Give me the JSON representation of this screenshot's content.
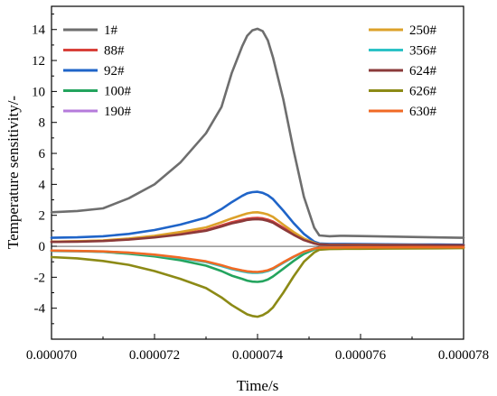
{
  "chart_data": {
    "type": "line",
    "xlabel": "Time/s",
    "ylabel": "Temperature sensitivity/-",
    "xlim": [
      7e-05,
      7.8e-05
    ],
    "ylim": [
      -6,
      15.5
    ],
    "xticks": [
      7e-05,
      7.2e-05,
      7.4e-05,
      7.6e-05,
      7.8e-05
    ],
    "xtick_labels": [
      "0.000070",
      "0.000072",
      "0.000074",
      "0.000076",
      "0.000078"
    ],
    "yticks": [
      -4,
      -2,
      0,
      2,
      4,
      6,
      8,
      10,
      12,
      14
    ],
    "ytick_labels": [
      "-4",
      "-2",
      "0",
      "2",
      "4",
      "6",
      "8",
      "10",
      "12",
      "14"
    ],
    "grid": false,
    "legend_placement": "top",
    "x": [
      7e-05,
      7.05e-05,
      7.1e-05,
      7.15e-05,
      7.2e-05,
      7.25e-05,
      7.3e-05,
      7.33e-05,
      7.35e-05,
      7.37e-05,
      7.38e-05,
      7.39e-05,
      7.4e-05,
      7.41e-05,
      7.42e-05,
      7.43e-05,
      7.45e-05,
      7.47e-05,
      7.49e-05,
      7.51e-05,
      7.52e-05,
      7.54e-05,
      7.56e-05,
      7.6e-05,
      7.65e-05,
      7.7e-05,
      7.75e-05,
      7.8e-05
    ],
    "series": [
      {
        "name": "1#",
        "color": "#6e6e6e",
        "values": [
          2.2,
          2.28,
          2.45,
          3.1,
          4.0,
          5.4,
          7.3,
          9.0,
          11.2,
          12.9,
          13.6,
          13.95,
          14.05,
          13.9,
          13.3,
          12.2,
          9.5,
          6.2,
          3.2,
          1.2,
          0.7,
          0.65,
          0.68,
          0.66,
          0.63,
          0.6,
          0.57,
          0.55
        ]
      },
      {
        "name": "88#",
        "color": "#d8413a",
        "values": [
          0.3,
          0.32,
          0.36,
          0.45,
          0.6,
          0.8,
          1.05,
          1.35,
          1.55,
          1.7,
          1.78,
          1.82,
          1.83,
          1.8,
          1.72,
          1.6,
          1.2,
          0.8,
          0.45,
          0.2,
          0.12,
          0.1,
          0.1,
          0.1,
          0.09,
          0.08,
          0.07,
          0.07
        ]
      },
      {
        "name": "92#",
        "color": "#1f64c8",
        "values": [
          0.55,
          0.58,
          0.65,
          0.8,
          1.05,
          1.4,
          1.85,
          2.4,
          2.85,
          3.25,
          3.42,
          3.5,
          3.52,
          3.45,
          3.3,
          3.05,
          2.3,
          1.5,
          0.8,
          0.3,
          0.18,
          0.15,
          0.15,
          0.14,
          0.13,
          0.12,
          0.11,
          0.1
        ]
      },
      {
        "name": "100#",
        "color": "#23a45e",
        "values": [
          -0.3,
          -0.32,
          -0.36,
          -0.48,
          -0.65,
          -0.9,
          -1.25,
          -1.6,
          -1.9,
          -2.1,
          -2.22,
          -2.28,
          -2.3,
          -2.26,
          -2.15,
          -1.95,
          -1.45,
          -0.95,
          -0.5,
          -0.2,
          -0.12,
          -0.1,
          -0.1,
          -0.1,
          -0.09,
          -0.08,
          -0.07,
          -0.07
        ]
      },
      {
        "name": "190#",
        "color": "#b57bdb",
        "values": [
          -0.3,
          -0.31,
          -0.34,
          -0.42,
          -0.55,
          -0.75,
          -1.0,
          -1.25,
          -1.45,
          -1.6,
          -1.65,
          -1.68,
          -1.7,
          -1.66,
          -1.58,
          -1.45,
          -1.05,
          -0.68,
          -0.36,
          -0.15,
          -0.1,
          -0.08,
          -0.08,
          -0.08,
          -0.07,
          -0.07,
          -0.06,
          -0.06
        ]
      },
      {
        "name": "250#",
        "color": "#dca12a",
        "values": [
          0.3,
          0.33,
          0.38,
          0.5,
          0.68,
          0.92,
          1.22,
          1.55,
          1.8,
          2.02,
          2.12,
          2.18,
          2.2,
          2.14,
          2.05,
          1.9,
          1.4,
          0.92,
          0.5,
          0.22,
          0.13,
          0.1,
          0.1,
          0.1,
          0.09,
          0.08,
          0.07,
          0.07
        ]
      },
      {
        "name": "356#",
        "color": "#2cc2c6",
        "values": [
          -0.3,
          -0.31,
          -0.34,
          -0.43,
          -0.57,
          -0.77,
          -1.02,
          -1.28,
          -1.48,
          -1.62,
          -1.68,
          -1.71,
          -1.72,
          -1.68,
          -1.6,
          -1.47,
          -1.07,
          -0.7,
          -0.37,
          -0.16,
          -0.1,
          -0.08,
          -0.08,
          -0.08,
          -0.07,
          -0.07,
          -0.06,
          -0.06
        ]
      },
      {
        "name": "624#",
        "color": "#8b3a3a",
        "values": [
          0.28,
          0.3,
          0.34,
          0.43,
          0.57,
          0.76,
          1.0,
          1.28,
          1.48,
          1.62,
          1.7,
          1.74,
          1.75,
          1.72,
          1.64,
          1.52,
          1.12,
          0.74,
          0.4,
          0.18,
          0.11,
          0.09,
          0.09,
          0.09,
          0.08,
          0.08,
          0.07,
          0.07
        ]
      },
      {
        "name": "626#",
        "color": "#8c8a16",
        "values": [
          -0.7,
          -0.78,
          -0.95,
          -1.2,
          -1.6,
          -2.1,
          -2.7,
          -3.3,
          -3.8,
          -4.2,
          -4.4,
          -4.5,
          -4.55,
          -4.45,
          -4.25,
          -3.95,
          -3.0,
          -1.95,
          -1.0,
          -0.4,
          -0.22,
          -0.18,
          -0.17,
          -0.16,
          -0.15,
          -0.14,
          -0.13,
          -0.12
        ]
      },
      {
        "name": "630#",
        "color": "#f06a24",
        "values": [
          -0.28,
          -0.3,
          -0.33,
          -0.41,
          -0.54,
          -0.73,
          -0.97,
          -1.22,
          -1.42,
          -1.56,
          -1.62,
          -1.65,
          -1.66,
          -1.62,
          -1.55,
          -1.42,
          -1.03,
          -0.67,
          -0.35,
          -0.15,
          -0.09,
          -0.08,
          -0.08,
          -0.07,
          -0.07,
          -0.06,
          -0.06,
          -0.06
        ]
      }
    ]
  }
}
